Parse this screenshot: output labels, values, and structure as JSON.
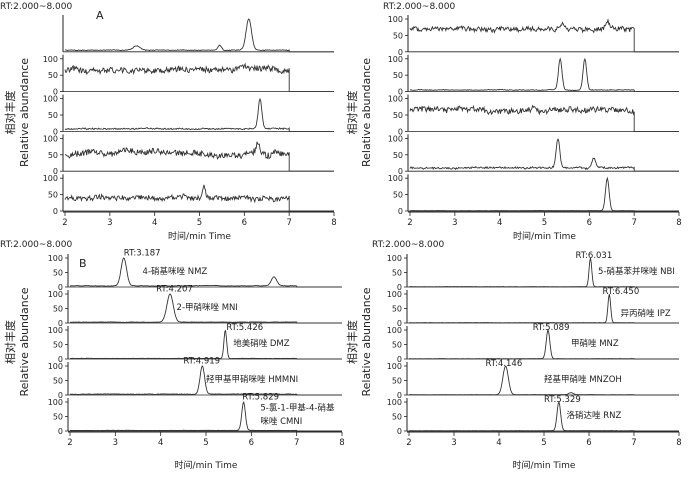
{
  "chart_data": [
    {
      "type": "line",
      "rt_label": "RT:2.000~8.000",
      "panel_letter": "A",
      "ylabel_cn": "相对丰度",
      "ylabel_en": "Relative abundance",
      "xlabel": "时间/min Time",
      "xlim": [
        2,
        8
      ],
      "x_ticks": [
        "2",
        "3",
        "4",
        "5",
        "6",
        "7",
        "8"
      ],
      "traces": [
        {
          "y_ticks": [],
          "end_rt": 7.0,
          "baseline": 5,
          "noise": 2,
          "peaks": [
            [
              3.6,
              18,
              0.08
            ],
            [
              5.45,
              20,
              0.04
            ],
            [
              6.1,
              100,
              0.06
            ]
          ],
          "labels": []
        },
        {
          "y_ticks": [
            "0",
            "50",
            "100"
          ],
          "end_rt": 7.0,
          "baseline": 65,
          "noise": 16,
          "peaks": [],
          "labels": []
        },
        {
          "y_ticks": [
            "0",
            "50",
            "100"
          ],
          "end_rt": 7.0,
          "baseline": 8,
          "noise": 4,
          "peaks": [
            [
              6.35,
              100,
              0.04
            ]
          ],
          "labels": []
        },
        {
          "y_ticks": [
            "0",
            "50",
            "100"
          ],
          "end_rt": 7.0,
          "baseline": 55,
          "noise": 18,
          "peaks": [
            [
              6.3,
              80,
              0.05
            ]
          ],
          "labels": []
        },
        {
          "y_ticks": [
            "0",
            "50",
            "100"
          ],
          "end_rt": 7.0,
          "baseline": 40,
          "noise": 14,
          "peaks": [
            [
              5.1,
              82,
              0.03
            ]
          ],
          "labels": []
        }
      ]
    },
    {
      "type": "line",
      "rt_label": "RT:2.000~8.000",
      "panel_letter": "",
      "ylabel_cn": "相对丰度",
      "ylabel_en": "Relative abundance",
      "xlabel": "时间/min Time",
      "xlim": [
        2,
        8
      ],
      "x_ticks": [
        "2",
        "3",
        "4",
        "5",
        "6",
        "7",
        "8"
      ],
      "traces": [
        {
          "y_ticks": [
            "0",
            "50",
            "100"
          ],
          "end_rt": 7.0,
          "baseline": 70,
          "noise": 14,
          "peaks": [
            [
              5.4,
              90,
              0.04
            ],
            [
              6.4,
              100,
              0.04
            ]
          ],
          "labels": []
        },
        {
          "y_ticks": [
            "0",
            "50",
            "100"
          ],
          "end_rt": 7.0,
          "baseline": 5,
          "noise": 2,
          "peaks": [
            [
              5.35,
              100,
              0.04
            ],
            [
              5.9,
              100,
              0.04
            ]
          ],
          "labels": []
        },
        {
          "y_ticks": [
            "0",
            "50",
            "100"
          ],
          "end_rt": 7.0,
          "baseline": 65,
          "noise": 16,
          "peaks": [],
          "labels": []
        },
        {
          "y_ticks": [
            "0",
            "50",
            "100"
          ],
          "end_rt": 7.0,
          "baseline": 10,
          "noise": 5,
          "peaks": [
            [
              5.3,
              100,
              0.04
            ],
            [
              6.1,
              40,
              0.04
            ]
          ],
          "labels": []
        },
        {
          "y_ticks": [
            "0",
            "50",
            "100"
          ],
          "end_rt": 7.0,
          "baseline": 1,
          "noise": 0.5,
          "peaks": [
            [
              6.4,
              100,
              0.04
            ]
          ],
          "labels": []
        }
      ]
    },
    {
      "type": "line",
      "rt_label": "RT:2.000~8.000",
      "panel_letter": "B",
      "ylabel_cn": "相对丰度",
      "ylabel_en": "Relative abundance",
      "xlabel": "时间/min Time",
      "xlim": [
        2,
        8
      ],
      "x_ticks": [
        "2",
        "3",
        "4",
        "5",
        "6",
        "7",
        "8"
      ],
      "traces": [
        {
          "y_ticks": [
            "0",
            "50",
            "100"
          ],
          "end_rt": 7.0,
          "baseline": 4,
          "noise": 1.5,
          "peaks": [
            [
              3.187,
              100,
              0.06
            ],
            [
              6.5,
              35,
              0.06
            ]
          ],
          "labels": [
            {
              "text": "RT:3.187",
              "x": 3.187,
              "y": 108
            },
            {
              "text": "4-硝基咪唑 NMZ",
              "x": 3.6,
              "y": 45
            }
          ]
        },
        {
          "y_ticks": [
            "0",
            "50",
            "100"
          ],
          "end_rt": 7.0,
          "baseline": 3,
          "noise": 1.2,
          "peaks": [
            [
              4.207,
              100,
              0.07
            ]
          ],
          "labels": [
            {
              "text": "RT:4.207",
              "x": 3.9,
              "y": 108
            },
            {
              "text": "2-甲硝咪唑 MNI",
              "x": 4.35,
              "y": 45
            }
          ]
        },
        {
          "y_ticks": [
            "0",
            "50",
            "100"
          ],
          "end_rt": 7.0,
          "baseline": 2,
          "noise": 1,
          "peaks": [
            [
              5.426,
              100,
              0.03
            ]
          ],
          "labels": [
            {
              "text": "RT:5.426",
              "x": 5.45,
              "y": 100
            },
            {
              "text": "地美硝唑 DMZ",
              "x": 5.6,
              "y": 45
            }
          ]
        },
        {
          "y_ticks": [
            "0",
            "50",
            "100"
          ],
          "end_rt": 7.0,
          "baseline": 3,
          "noise": 1.5,
          "peaks": [
            [
              4.919,
              100,
              0.05
            ]
          ],
          "labels": [
            {
              "text": "RT:4.919",
              "x": 4.5,
              "y": 108
            },
            {
              "text": "羟甲基甲硝咪唑 HMMNI",
              "x": 5.0,
              "y": 45
            }
          ]
        },
        {
          "y_ticks": [
            "0",
            "50",
            "100"
          ],
          "end_rt": 7.0,
          "baseline": 2,
          "noise": 1,
          "peaks": [
            [
              5.829,
              100,
              0.04
            ]
          ],
          "labels": [
            {
              "text": "RT:5.829",
              "x": 5.8,
              "y": 108
            },
            {
              "text": "5-氯-1-甲基-4-硝基",
              "x": 6.2,
              "y": 70
            },
            {
              "text": "咪唑 CMNI",
              "x": 6.2,
              "y": 25
            }
          ]
        }
      ]
    },
    {
      "type": "line",
      "rt_label": "RT:2.000~8.000",
      "panel_letter": "",
      "ylabel_cn": "相对丰度",
      "ylabel_en": "Relative abundance",
      "xlabel": "时间/min Time",
      "xlim": [
        2,
        8
      ],
      "x_ticks": [
        "2",
        "3",
        "4",
        "5",
        "6",
        "7",
        "8"
      ],
      "traces": [
        {
          "y_ticks": [
            "0",
            "50",
            "100"
          ],
          "end_rt": 7.0,
          "baseline": 1,
          "noise": 0.5,
          "peaks": [
            [
              6.031,
              100,
              0.03
            ]
          ],
          "labels": [
            {
              "text": "RT:6.031",
              "x": 5.7,
              "y": 100
            },
            {
              "text": "5-硝基苯并咪唑 NBI",
              "x": 6.2,
              "y": 45
            }
          ]
        },
        {
          "y_ticks": [
            "0",
            "50",
            "100"
          ],
          "end_rt": 7.0,
          "baseline": 1,
          "noise": 0.5,
          "peaks": [
            [
              6.45,
              100,
              0.03
            ]
          ],
          "labels": [
            {
              "text": "RT:6.450",
              "x": 6.3,
              "y": 100
            },
            {
              "text": "异丙硝唑 IPZ",
              "x": 6.7,
              "y": 25
            }
          ]
        },
        {
          "y_ticks": [
            "0",
            "50",
            "100"
          ],
          "end_rt": 7.0,
          "baseline": 1,
          "noise": 0.5,
          "peaks": [
            [
              5.089,
              100,
              0.04
            ]
          ],
          "labels": [
            {
              "text": "RT:5.089",
              "x": 4.75,
              "y": 100
            },
            {
              "text": "甲硝唑 MNZ",
              "x": 5.6,
              "y": 45
            }
          ]
        },
        {
          "y_ticks": [
            "0",
            "50",
            "100"
          ],
          "end_rt": 7.0,
          "baseline": 1,
          "noise": 0.5,
          "peaks": [
            [
              4.146,
              100,
              0.06
            ],
            [
              5.6,
              8,
              0.05
            ]
          ],
          "labels": [
            {
              "text": "RT:4.146",
              "x": 3.7,
              "y": 100
            },
            {
              "text": "羟基甲硝唑 MNZOH",
              "x": 5.0,
              "y": 45
            }
          ]
        },
        {
          "y_ticks": [
            "0",
            "50",
            "100"
          ],
          "end_rt": 7.0,
          "baseline": 1,
          "noise": 0.5,
          "peaks": [
            [
              5.329,
              100,
              0.04
            ]
          ],
          "labels": [
            {
              "text": "RT:5.329",
              "x": 5.0,
              "y": 100
            },
            {
              "text": "洛硝达唑 RNZ",
              "x": 5.5,
              "y": 45
            }
          ]
        }
      ]
    }
  ]
}
